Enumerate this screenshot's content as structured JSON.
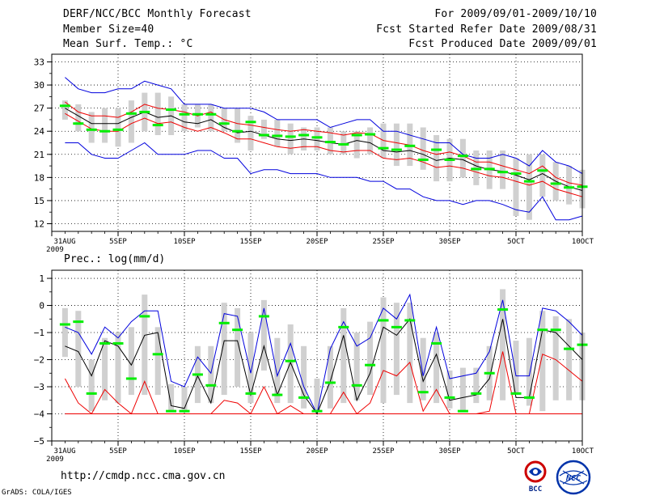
{
  "header": {
    "title": "DERF/NCC/BCC Monthly Forecast",
    "member_size": "Member Size=40",
    "variable": "Mean Surf. Temp.: °C",
    "forecast_period": "For 2009/09/01-2009/10/10",
    "started_date": "Fcst Started Refer Date 2009/08/31",
    "produced_date": "Fcst Produced Date 2009/09/01"
  },
  "footer": {
    "url": "http://cmdp.ncc.cma.gov.cn",
    "credit": "GrADS: COLA/IGES",
    "logo_left_text": "BCC",
    "logo_right_text": "NCC"
  },
  "colors": {
    "box": "#d0d0d0",
    "median": "#00ee00",
    "mean": "#000000",
    "spread": "#ee0000",
    "extreme": "#0000dd",
    "grid": "#000000"
  },
  "chart_data": [
    {
      "type": "box-ensemble",
      "title": "Mean Surf. Temp.: °C",
      "xlabel": "",
      "ylabel": "°C",
      "ylim": [
        11,
        34
      ],
      "yticks": [
        12,
        15,
        18,
        21,
        24,
        27,
        30,
        33
      ],
      "xticks": [
        {
          "day": 0,
          "label": "31AUG",
          "sublabel": "2009"
        },
        {
          "day": 5,
          "label": "5SEP"
        },
        {
          "day": 10,
          "label": "10SEP"
        },
        {
          "day": 15,
          "label": "15SEP"
        },
        {
          "day": 20,
          "label": "20SEP"
        },
        {
          "day": 25,
          "label": "25SEP"
        },
        {
          "day": 30,
          "label": "30SEP"
        },
        {
          "day": 35,
          "label": "5OCT"
        },
        {
          "day": 40,
          "label": "10OCT"
        }
      ],
      "days": [
        1,
        2,
        3,
        4,
        5,
        6,
        7,
        8,
        9,
        10,
        11,
        12,
        13,
        14,
        15,
        16,
        17,
        18,
        19,
        20,
        21,
        22,
        23,
        24,
        25,
        26,
        27,
        28,
        29,
        30,
        31,
        32,
        33,
        34,
        35,
        36,
        37,
        38,
        39,
        40
      ],
      "box_low": [
        25.5,
        24.0,
        22.5,
        22.5,
        22.0,
        22.5,
        24.0,
        23.5,
        23.5,
        24.0,
        24.5,
        24.0,
        24.0,
        22.5,
        21.5,
        23.0,
        22.0,
        21.0,
        21.5,
        21.5,
        21.0,
        21.0,
        20.5,
        21.0,
        20.5,
        19.5,
        19.5,
        19.0,
        17.5,
        17.5,
        18.0,
        17.0,
        16.5,
        16.5,
        13.0,
        12.5,
        15.5,
        15.0,
        14.5,
        14.0
      ],
      "box_high": [
        28.0,
        27.5,
        26.5,
        27.0,
        27.0,
        28.0,
        29.0,
        29.0,
        28.5,
        27.5,
        27.5,
        27.5,
        27.0,
        27.0,
        26.0,
        25.5,
        25.5,
        25.0,
        24.5,
        24.5,
        24.5,
        24.0,
        24.0,
        24.5,
        25.0,
        25.0,
        25.0,
        24.5,
        23.5,
        23.0,
        23.0,
        21.5,
        21.5,
        21.5,
        20.5,
        21.0,
        21.0,
        20.0,
        19.5,
        19.0
      ],
      "median": [
        27.3,
        25.0,
        24.2,
        24.0,
        24.2,
        26.3,
        26.5,
        24.8,
        26.8,
        26.2,
        26.2,
        26.2,
        25.0,
        24.0,
        25.2,
        23.5,
        23.4,
        23.3,
        23.5,
        23.2,
        22.6,
        22.3,
        23.5,
        23.6,
        21.8,
        21.6,
        22.1,
        20.3,
        21.6,
        20.3,
        20.8,
        19.1,
        19.1,
        18.7,
        18.5,
        17.5,
        18.9,
        17.2,
        16.7,
        16.8
      ],
      "mean": [
        27.0,
        26.0,
        25.0,
        25.0,
        25.0,
        25.8,
        26.5,
        25.8,
        26.0,
        25.2,
        25.0,
        25.5,
        24.5,
        23.8,
        24.0,
        23.5,
        23.0,
        22.8,
        23.0,
        22.8,
        22.5,
        22.3,
        22.8,
        22.5,
        21.5,
        21.3,
        21.5,
        21.0,
        20.2,
        20.5,
        20.3,
        19.5,
        19.0,
        18.8,
        18.3,
        17.7,
        18.5,
        17.5,
        16.8,
        16.3
      ],
      "upper_spread": [
        27.8,
        26.5,
        26.0,
        26.0,
        25.8,
        26.5,
        27.5,
        27.0,
        26.8,
        26.5,
        26.0,
        26.5,
        25.5,
        25.0,
        24.8,
        24.5,
        24.2,
        24.0,
        24.2,
        24.0,
        23.8,
        23.5,
        23.8,
        23.7,
        22.8,
        22.5,
        22.2,
        21.5,
        21.0,
        21.3,
        20.8,
        20.0,
        20.0,
        19.5,
        19.0,
        18.5,
        19.5,
        18.0,
        17.3,
        17.0
      ],
      "lower_spread": [
        26.3,
        25.3,
        24.3,
        24.0,
        24.0,
        25.0,
        25.7,
        25.0,
        25.2,
        24.5,
        24.0,
        24.5,
        23.8,
        23.0,
        23.0,
        22.5,
        22.0,
        21.8,
        22.0,
        22.0,
        21.5,
        21.3,
        21.5,
        21.5,
        20.5,
        20.3,
        20.5,
        20.0,
        19.3,
        19.5,
        19.2,
        18.7,
        18.2,
        18.0,
        17.5,
        17.0,
        17.5,
        16.5,
        16.0,
        15.5
      ],
      "max": [
        31.0,
        29.5,
        29.0,
        29.0,
        29.5,
        29.5,
        30.5,
        30.0,
        29.5,
        27.5,
        27.5,
        27.5,
        27.0,
        27.0,
        27.0,
        26.5,
        25.5,
        25.5,
        25.5,
        25.5,
        24.5,
        25.0,
        25.5,
        25.5,
        24.0,
        24.0,
        23.5,
        23.0,
        22.5,
        22.5,
        21.0,
        20.5,
        20.5,
        21.0,
        20.5,
        19.5,
        21.5,
        20.0,
        19.5,
        18.5
      ],
      "min": [
        22.5,
        22.5,
        21.0,
        20.5,
        20.5,
        21.5,
        22.5,
        21.0,
        21.0,
        21.0,
        21.5,
        21.5,
        20.5,
        20.5,
        18.5,
        19.0,
        19.0,
        18.5,
        18.5,
        18.5,
        18.0,
        18.0,
        18.0,
        17.5,
        17.5,
        16.5,
        16.5,
        15.5,
        15.0,
        15.0,
        14.5,
        15.0,
        15.0,
        14.5,
        13.8,
        13.5,
        15.5,
        12.5,
        12.5,
        13.0
      ]
    },
    {
      "type": "box-ensemble",
      "title": "Prec.: log(mm/d)",
      "xlabel": "",
      "ylabel": "log(mm/d)",
      "ylim": [
        -5,
        1.3
      ],
      "yticks": [
        -5,
        -4,
        -3,
        -2,
        -1,
        0,
        1
      ],
      "xticks": [
        {
          "day": 0,
          "label": "31AUG",
          "sublabel": "2009"
        },
        {
          "day": 5,
          "label": "5SEP"
        },
        {
          "day": 10,
          "label": "10SEP"
        },
        {
          "day": 15,
          "label": "15SEP"
        },
        {
          "day": 20,
          "label": "20SEP"
        },
        {
          "day": 25,
          "label": "25SEP"
        },
        {
          "day": 30,
          "label": "30SEP"
        },
        {
          "day": 35,
          "label": "5OCT"
        },
        {
          "day": 40,
          "label": "10OCT"
        }
      ],
      "days": [
        1,
        2,
        3,
        4,
        5,
        6,
        7,
        8,
        9,
        10,
        11,
        12,
        13,
        14,
        15,
        16,
        17,
        18,
        19,
        20,
        21,
        22,
        23,
        24,
        25,
        26,
        27,
        28,
        29,
        30,
        31,
        32,
        33,
        34,
        35,
        36,
        37,
        38,
        39,
        40
      ],
      "box_low": [
        -1.9,
        -3.0,
        -3.9,
        -3.5,
        -3.6,
        -3.3,
        -3.3,
        -3.3,
        -3.9,
        -3.9,
        -3.6,
        -3.6,
        -3.3,
        -3.0,
        -3.6,
        -2.4,
        -3.6,
        -3.6,
        -3.8,
        -3.9,
        -3.8,
        -3.6,
        -3.5,
        -3.3,
        -3.6,
        -3.3,
        -3.6,
        -3.5,
        -3.6,
        -3.8,
        -3.9,
        -3.6,
        -3.5,
        -3.5,
        -3.3,
        -3.7,
        -3.9,
        -3.5,
        -3.5,
        -3.5
      ],
      "box_high": [
        -0.1,
        -0.2,
        -2.0,
        -1.2,
        -1.0,
        -0.8,
        0.4,
        -0.8,
        -2.9,
        -3.0,
        -1.5,
        -1.5,
        0.1,
        -0.1,
        -1.0,
        0.2,
        -1.2,
        -0.7,
        -1.5,
        -2.7,
        -1.5,
        -0.1,
        -1.0,
        -0.6,
        0.3,
        0.1,
        0.1,
        -1.2,
        -1.0,
        -2.4,
        -2.3,
        -2.3,
        -1.5,
        0.6,
        -1.3,
        -1.2,
        -0.2,
        -0.4,
        -0.5,
        -1.0
      ],
      "median": [
        -0.7,
        -0.6,
        -3.25,
        -1.4,
        -1.4,
        -2.7,
        -0.4,
        -1.8,
        -3.9,
        -3.9,
        -2.55,
        -2.95,
        -0.65,
        -0.9,
        -3.25,
        -0.4,
        -3.3,
        -2.05,
        -3.4,
        -3.9,
        -2.85,
        -0.8,
        -2.95,
        -2.2,
        -0.55,
        -0.8,
        -0.55,
        -3.2,
        -1.4,
        -3.4,
        -3.9,
        -3.25,
        -2.5,
        -0.15,
        -3.25,
        -3.4,
        -0.9,
        -0.9,
        -1.6,
        -1.45
      ],
      "mean": [
        -1.5,
        -1.7,
        -2.6,
        -1.3,
        -1.5,
        -2.2,
        -1.1,
        -1.0,
        -3.7,
        -3.8,
        -2.6,
        -3.6,
        -1.3,
        -1.3,
        -3.3,
        -1.5,
        -3.3,
        -2.1,
        -3.3,
        -4.0,
        -2.8,
        -1.1,
        -3.5,
        -2.5,
        -0.8,
        -1.1,
        -0.5,
        -2.8,
        -1.8,
        -3.5,
        -3.4,
        -3.3,
        -2.7,
        -0.5,
        -3.4,
        -3.4,
        -0.9,
        -1.0,
        -1.5,
        -2.0
      ],
      "upper_spread": [
        -2.7,
        -3.6,
        -4.0,
        -3.1,
        -3.6,
        -4.0,
        -2.8,
        -4.0,
        -4.0,
        -4.0,
        -4.0,
        -4.0,
        -3.5,
        -3.6,
        -4.0,
        -3.0,
        -4.0,
        -3.7,
        -4.0,
        -4.0,
        -4.0,
        -3.2,
        -4.0,
        -3.6,
        -2.4,
        -2.6,
        -2.1,
        -3.9,
        -3.1,
        -4.0,
        -4.0,
        -4.0,
        -3.9,
        -1.7,
        -4.0,
        -4.0,
        -1.8,
        -2.0,
        -2.4,
        -2.8
      ],
      "lower_spread": [
        -4.0,
        -4.0,
        -4.0,
        -4.0,
        -4.0,
        -4.0,
        -4.0,
        -4.0,
        -4.0,
        -4.0,
        -4.0,
        -4.0,
        -4.0,
        -4.0,
        -4.0,
        -4.0,
        -4.0,
        -4.0,
        -4.0,
        -4.0,
        -4.0,
        -4.0,
        -4.0,
        -4.0,
        -4.0,
        -4.0,
        -4.0,
        -4.0,
        -4.0,
        -4.0,
        -4.0,
        -4.0,
        -4.0,
        -4.0,
        -4.0,
        -4.0,
        -4.0,
        -4.0,
        -4.0,
        -4.0
      ],
      "max": [
        -0.8,
        -1.0,
        -1.8,
        -0.8,
        -1.2,
        -0.6,
        -0.2,
        -0.2,
        -2.8,
        -3.0,
        -1.9,
        -2.5,
        -0.3,
        -0.4,
        -2.5,
        -0.1,
        -2.6,
        -1.4,
        -3.0,
        -4.0,
        -1.6,
        -0.6,
        -1.5,
        -1.2,
        -0.1,
        -0.5,
        0.4,
        -2.6,
        -0.8,
        -2.7,
        -2.6,
        -2.5,
        -1.7,
        0.2,
        -2.6,
        -2.6,
        -0.1,
        -0.2,
        -0.6,
        -1.1
      ],
      "min": [
        -4.0,
        -4.0,
        -4.0,
        -4.0,
        -4.0,
        -4.0,
        -4.0,
        -4.0,
        -4.0,
        -4.0,
        -4.0,
        -4.0,
        -4.0,
        -4.0,
        -4.0,
        -4.0,
        -4.0,
        -4.0,
        -4.0,
        -4.0,
        -4.0,
        -4.0,
        -4.0,
        -4.0,
        -4.0,
        -4.0,
        -4.0,
        -4.0,
        -4.0,
        -4.0,
        -4.0,
        -4.0,
        -4.0,
        -4.0,
        -4.0,
        -4.0,
        -4.0,
        -4.0,
        -4.0,
        -4.0
      ]
    }
  ]
}
